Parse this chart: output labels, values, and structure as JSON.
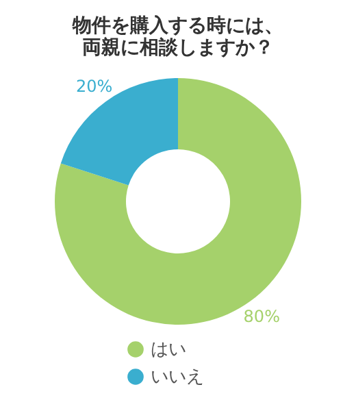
{
  "chart_data": {
    "type": "donut",
    "title": "物件を購入する時には、両親に相談しますか？",
    "categories": [
      "はい",
      "いいえ"
    ],
    "values": [
      80,
      20
    ],
    "colors": [
      "#a5d16b",
      "#3aaecf"
    ],
    "value_labels": [
      "80%",
      "20%"
    ],
    "legend": "bottom"
  }
}
